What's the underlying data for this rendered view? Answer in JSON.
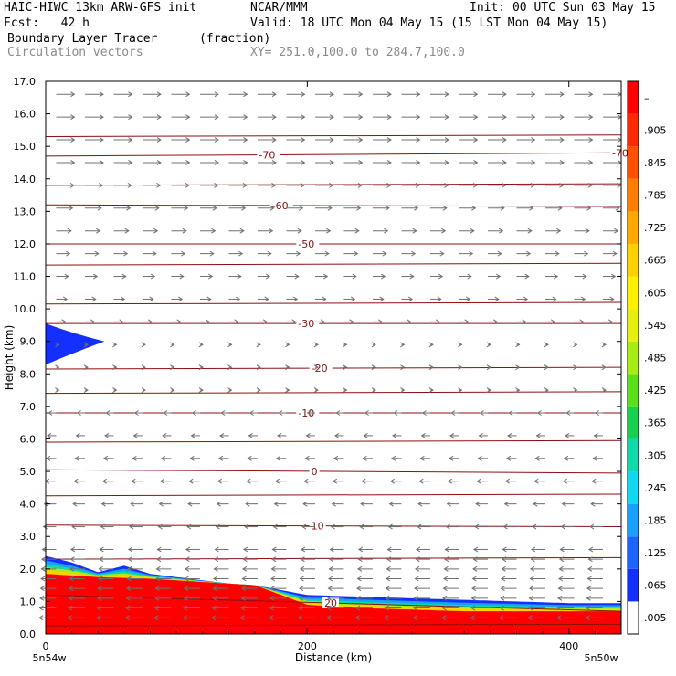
{
  "header": {
    "run": "HAIC-HIWC 13km ARW-GFS init",
    "org": "NCAR/MMM",
    "init": "Init: 00 UTC Sun 03 May 15",
    "fcst": "Fcst:   42 h",
    "valid": "Valid: 18 UTC Mon 04 May 15 (15 LST Mon 04 May 15)",
    "field": "Boundary Layer Tracer",
    "units": "(fraction)",
    "overlay": "Circulation vectors",
    "xy": "XY= 251.0,100.0 to 284.7,100.0"
  },
  "chart_data": {
    "type": "heatmap",
    "title": "Boundary Layer Tracer (fraction)",
    "xlabel": "Distance (km)",
    "ylabel": "Height (km)",
    "xlim": [
      0,
      440
    ],
    "ylim": [
      0,
      17
    ],
    "x_ticks": [
      0,
      200,
      400
    ],
    "x_end_labels": [
      "5n54w",
      "5n50w"
    ],
    "y_ticks": [
      "0.0",
      "1.0",
      "2.0",
      "3.0",
      "4.0",
      "5.0",
      "6.0",
      "7.0",
      "8.0",
      "9.0",
      "10.0",
      "11.0",
      "12.0",
      "13.0",
      "14.0",
      "15.0",
      "16.0",
      "17.0"
    ],
    "colorbar": {
      "labels": [
        ".005",
        ".065",
        ".125",
        ".185",
        ".245",
        ".305",
        ".365",
        ".425",
        ".485",
        ".545",
        ".605",
        ".665",
        ".725",
        ".785",
        ".845",
        ".905",
        "–"
      ],
      "colors": [
        "#ffffff",
        "#1430ff",
        "#1c64ff",
        "#1aa0ff",
        "#10d8f0",
        "#10d8a8",
        "#18d050",
        "#5ae01a",
        "#a8ec14",
        "#e6f00e",
        "#fff000",
        "#ffd000",
        "#ffa800",
        "#ff7e00",
        "#ff5000",
        "#ff2a00",
        "#ff0000"
      ]
    },
    "tracer_top_km": {
      "x": [
        0,
        20,
        40,
        60,
        80,
        100,
        120,
        140,
        160,
        180,
        200,
        240,
        280,
        320,
        360,
        400,
        440
      ],
      "y": [
        2.4,
        2.2,
        1.9,
        2.1,
        1.85,
        1.75,
        1.65,
        1.55,
        1.5,
        1.35,
        1.2,
        1.15,
        1.1,
        1.05,
        1.0,
        0.95,
        0.95
      ]
    },
    "red_core_top_km": {
      "x": [
        0,
        40,
        80,
        120,
        160,
        180,
        200,
        240,
        280,
        320,
        360,
        400,
        440
      ],
      "y": [
        1.85,
        1.75,
        1.7,
        1.6,
        1.5,
        1.2,
        0.9,
        0.8,
        0.75,
        0.7,
        0.7,
        0.7,
        0.7
      ]
    },
    "upper_plume": {
      "x": [
        0,
        45
      ],
      "y_center_km": 9.0,
      "half_depth_km": 0.55
    },
    "temperature_contours": [
      {
        "label": "-70",
        "y_left": 14.7,
        "y_right": 14.8,
        "label_x": [
          163,
          433
        ]
      },
      {
        "label": "-60",
        "y_left": 13.2,
        "y_right": 13.15,
        "label_x": [
          173
        ]
      },
      {
        "label": "-50",
        "y_left": 12.0,
        "y_right": 12.0,
        "label_x": [
          193
        ]
      },
      {
        "label": "-30",
        "y_left": 9.55,
        "y_right": 9.55,
        "label_x": [
          193
        ]
      },
      {
        "label": "-20",
        "y_left": 8.15,
        "y_right": 8.2,
        "label_x": [
          203
        ]
      },
      {
        "label": "-10",
        "y_left": 6.8,
        "y_right": 6.8,
        "label_x": [
          193
        ]
      },
      {
        "label": "0",
        "y_left": 5.05,
        "y_right": 4.95,
        "label_x": [
          203
        ]
      },
      {
        "label": "10",
        "y_left": 3.35,
        "y_right": 3.3,
        "label_x": [
          203
        ]
      },
      {
        "label": "20",
        "y_left": 1.2,
        "y_right": 0.7,
        "label_x": [
          213
        ]
      }
    ],
    "extra_contour_levels_km": [
      15.3,
      13.8,
      11.35,
      10.15,
      7.4,
      5.9,
      4.25,
      2.3,
      0.25
    ],
    "vectors": {
      "dx_km": 22,
      "upper_flow": "eastward",
      "lower_flow": "westward",
      "reversal_height_km": 9.5
    }
  }
}
